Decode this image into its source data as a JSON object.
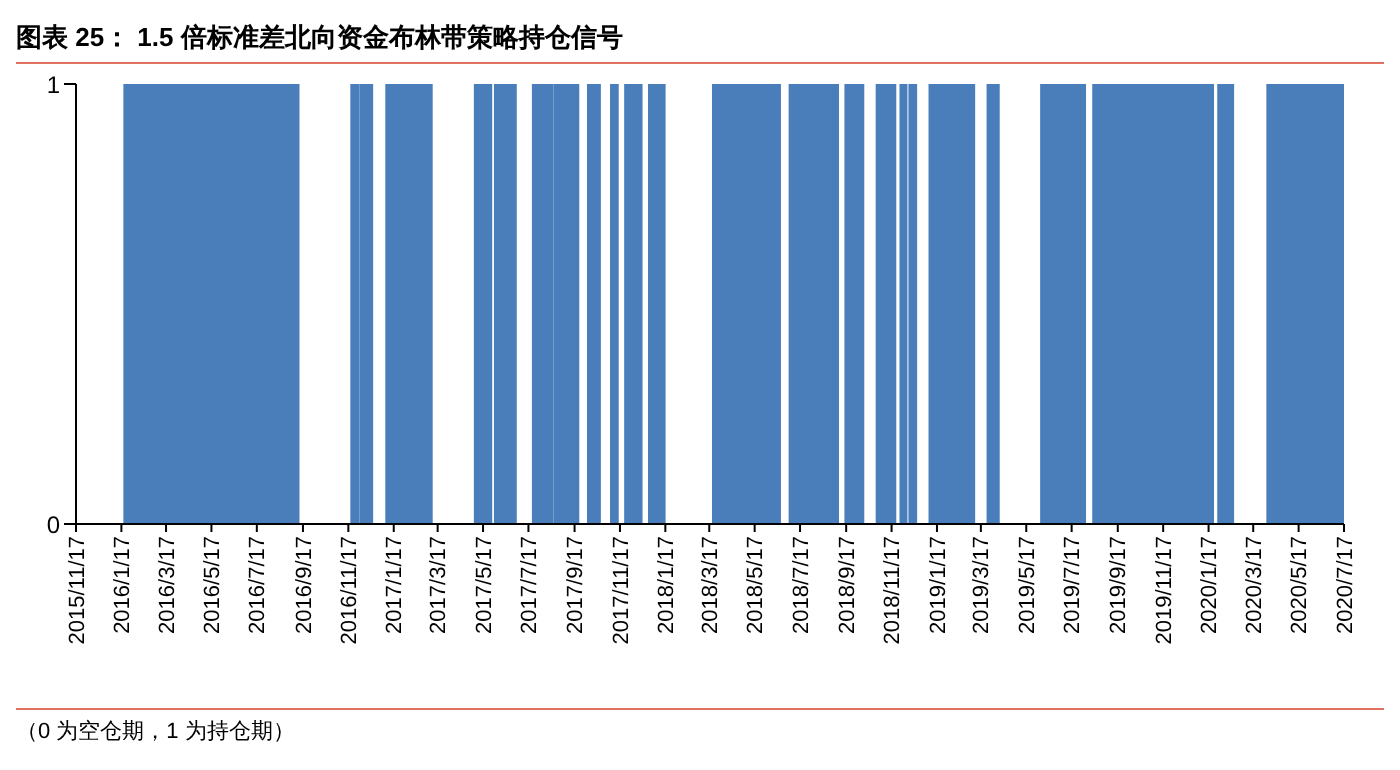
{
  "chart_data": {
    "type": "area",
    "title": "图表 25：  1.5 倍标准差北向资金布林带策略持仓信号",
    "x": [
      "2015-11-17",
      "2016-01-21",
      "2016-01-21",
      "2016-09-11",
      "2016-09-11",
      "2016-11-21",
      "2016-11-21",
      "2016-11-30",
      "2016-11-30",
      "2016-12-03",
      "2016-12-03",
      "2016-12-19",
      "2016-12-19",
      "2017-01-07",
      "2017-01-07",
      "2017-03-09",
      "2017-03-09",
      "2017-05-06",
      "2017-05-06",
      "2017-05-28",
      "2017-05-28",
      "2017-06-02",
      "2017-06-02",
      "2017-06-30",
      "2017-06-30",
      "2017-07-23",
      "2017-07-23",
      "2017-08-18",
      "2017-08-18",
      "2017-08-21",
      "2017-08-21",
      "2017-09-22",
      "2017-09-22",
      "2017-10-05",
      "2017-10-05",
      "2017-10-21",
      "2017-10-21",
      "2017-11-05",
      "2017-11-05",
      "2017-11-14",
      "2017-11-14",
      "2017-11-24",
      "2017-11-24",
      "2017-12-16",
      "2017-12-16",
      "2017-12-26",
      "2017-12-26",
      "2018-01-16",
      "2018-01-16",
      "2018-03-22",
      "2018-03-22",
      "2018-06-20",
      "2018-06-20",
      "2018-07-03",
      "2018-07-03",
      "2018-09-06",
      "2018-09-06",
      "2018-09-16",
      "2018-09-16",
      "2018-10-10",
      "2018-10-10",
      "2018-10-28",
      "2018-10-28",
      "2018-11-22",
      "2018-11-22",
      "2018-11-29",
      "2018-11-29",
      "2018-12-07",
      "2018-12-07",
      "2018-12-11",
      "2018-12-11",
      "2018-12-20",
      "2018-12-20",
      "2019-01-07",
      "2019-01-07",
      "2019-03-08",
      "2019-03-08",
      "2019-03-26",
      "2019-03-26",
      "2019-04-10",
      "2019-04-10",
      "2019-06-06",
      "2019-06-06",
      "2019-08-04",
      "2019-08-04",
      "2019-08-15",
      "2019-08-15",
      "2020-01-23",
      "2020-01-23",
      "2020-01-30",
      "2020-01-30",
      "2020-02-19",
      "2020-02-19",
      "2020-04-05",
      "2020-04-05",
      "2020-07-17"
    ],
    "values": [
      0,
      0,
      1,
      1,
      0,
      0,
      1,
      1,
      0,
      0,
      1,
      1,
      0,
      0,
      1,
      1,
      0,
      0,
      1,
      1,
      0,
      0,
      1,
      1,
      0,
      0,
      1,
      1,
      0,
      0,
      1,
      1,
      0,
      0,
      1,
      1,
      0,
      0,
      1,
      1,
      0,
      0,
      1,
      1,
      0,
      0,
      1,
      1,
      0,
      0,
      1,
      1,
      0,
      0,
      1,
      1,
      0,
      0,
      1,
      1,
      0,
      0,
      1,
      1,
      0,
      0,
      1,
      1,
      0,
      0,
      1,
      1,
      0,
      0,
      1,
      1,
      0,
      0,
      1,
      1,
      0,
      0,
      1,
      1,
      0,
      0,
      1,
      1,
      0,
      0,
      1,
      1,
      0,
      0,
      1,
      1
    ],
    "color": "#4a7ebb",
    "xlim": [
      "2015-11-17",
      "2020-07-17"
    ],
    "xticks": [
      {
        "value": "2015-11-17",
        "label": "2015/11/17"
      },
      {
        "value": "2016-01-17",
        "label": "2016/1/17"
      },
      {
        "value": "2016-03-17",
        "label": "2016/3/17"
      },
      {
        "value": "2016-05-17",
        "label": "2016/5/17"
      },
      {
        "value": "2016-07-17",
        "label": "2016/7/17"
      },
      {
        "value": "2016-09-17",
        "label": "2016/9/17"
      },
      {
        "value": "2016-11-17",
        "label": "2016/11/17"
      },
      {
        "value": "2017-01-17",
        "label": "2017/1/17"
      },
      {
        "value": "2017-03-17",
        "label": "2017/3/17"
      },
      {
        "value": "2017-05-17",
        "label": "2017/5/17"
      },
      {
        "value": "2017-07-17",
        "label": "2017/7/17"
      },
      {
        "value": "2017-09-17",
        "label": "2017/9/17"
      },
      {
        "value": "2017-11-17",
        "label": "2017/11/17"
      },
      {
        "value": "2018-01-17",
        "label": "2018/1/17"
      },
      {
        "value": "2018-03-17",
        "label": "2018/3/17"
      },
      {
        "value": "2018-05-17",
        "label": "2018/5/17"
      },
      {
        "value": "2018-07-17",
        "label": "2018/7/17"
      },
      {
        "value": "2018-09-17",
        "label": "2018/9/17"
      },
      {
        "value": "2018-11-17",
        "label": "2018/11/17"
      },
      {
        "value": "2019-01-17",
        "label": "2019/1/17"
      },
      {
        "value": "2019-03-17",
        "label": "2019/3/17"
      },
      {
        "value": "2019-05-17",
        "label": "2019/5/17"
      },
      {
        "value": "2019-07-17",
        "label": "2019/7/17"
      },
      {
        "value": "2019-09-17",
        "label": "2019/9/17"
      },
      {
        "value": "2019-11-17",
        "label": "2019/11/17"
      },
      {
        "value": "2020-01-17",
        "label": "2020/1/17"
      },
      {
        "value": "2020-03-17",
        "label": "2020/3/17"
      },
      {
        "value": "2020-05-17",
        "label": "2020/5/17"
      },
      {
        "value": "2020-07-17",
        "label": "2020/7/17"
      }
    ],
    "ylim": [
      0,
      1
    ],
    "yticks": [
      0,
      1
    ],
    "annotations": [
      "（0 为空仓期，1 为持仓期）"
    ]
  }
}
